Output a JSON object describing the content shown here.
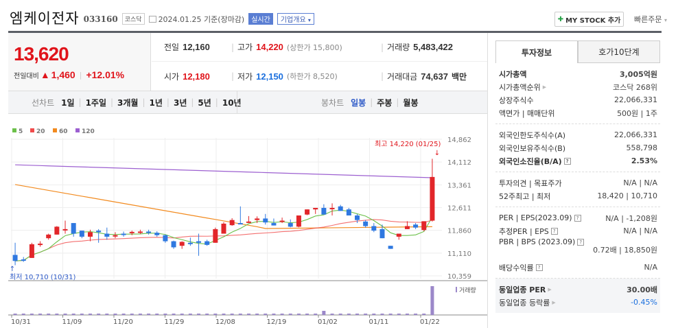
{
  "header": {
    "company_name": "엠케이전자",
    "stock_code": "033160",
    "market": "코스닥",
    "date_text": "2024.01.25 기준(장마감)",
    "realtime_label": "실시간",
    "corp_overview_label": "기업개요",
    "my_stock_label": "MY STOCK 추가",
    "quick_order_label": "빠른주문"
  },
  "price": {
    "current": "13,620",
    "change_label": "전일대비",
    "change_arrow": "▲",
    "change_value": "1,460",
    "change_pct": "+12.01%"
  },
  "stats": {
    "prev_close_label": "전일",
    "prev_close": "12,160",
    "high_label": "고가",
    "high": "14,220",
    "upper_limit": "(상한가 15,800)",
    "volume_label": "거래량",
    "volume": "5,483,422",
    "open_label": "시가",
    "open": "12,180",
    "low_label": "저가",
    "low": "12,150",
    "lower_limit": "(하한가 8,520)",
    "amount_label": "거래대금",
    "amount": "74,637",
    "amount_unit": "백만"
  },
  "periods": {
    "line_label": "선차트",
    "line_items": [
      "1일",
      "1주일",
      "3개월",
      "1년",
      "3년",
      "5년",
      "10년"
    ],
    "candle_label": "봉차트",
    "candle_items": [
      "일봉",
      "주봉",
      "월봉"
    ],
    "candle_selected": "일봉"
  },
  "chart_data": {
    "type": "candlestick",
    "title": "엠케이전자 일봉",
    "legend": [
      {
        "name": "5",
        "color": "#6cc04a"
      },
      {
        "name": "20",
        "color": "#f04b4b"
      },
      {
        "name": "60",
        "color": "#f28a1e"
      },
      {
        "name": "120",
        "color": "#9c5fd0"
      }
    ],
    "y_ticks": [
      "14,862",
      "14,112",
      "13,361",
      "12,611",
      "11,860",
      "11,110",
      "10,359"
    ],
    "ylim": [
      10359,
      14862
    ],
    "x_ticks": [
      "10/31",
      "11/09",
      "11/20",
      "11/29",
      "12/08",
      "12/19",
      "01/02",
      "01/11",
      "01/22"
    ],
    "annotations": {
      "high": "최고 14,220 (01/25)",
      "low": "최저 10,710 (10/31)"
    },
    "volume_label": "거래량",
    "candles": [
      [
        11050,
        11450,
        10710,
        10850
      ],
      [
        10900,
        10980,
        10820,
        10890
      ],
      [
        10950,
        11450,
        10950,
        11400
      ],
      [
        11400,
        11500,
        11320,
        11420
      ],
      [
        11600,
        11750,
        11550,
        11720
      ],
      [
        11720,
        12000,
        11800,
        11980
      ],
      [
        11900,
        12180,
        11750,
        11900
      ],
      [
        12100,
        12000,
        11650,
        11750
      ],
      [
        11850,
        11820,
        11600,
        11650
      ],
      [
        11650,
        11880,
        11500,
        11800
      ],
      [
        11850,
        11900,
        11450,
        11800
      ],
      [
        11750,
        11950,
        11550,
        11650
      ],
      [
        11700,
        11800,
        11600,
        11700
      ],
      [
        11750,
        11820,
        11650,
        11720
      ],
      [
        11800,
        11850,
        11700,
        11810
      ],
      [
        11800,
        11880,
        11740,
        11820
      ],
      [
        11820,
        11880,
        11720,
        11780
      ],
      [
        11780,
        11830,
        11650,
        11700
      ],
      [
        11700,
        11720,
        11450,
        11500
      ],
      [
        11500,
        11520,
        11250,
        11300
      ],
      [
        11350,
        11500,
        11250,
        11480
      ],
      [
        11450,
        11620,
        11350,
        11420
      ],
      [
        11500,
        11750,
        11020,
        11450
      ],
      [
        11500,
        11550,
        11350,
        11380
      ],
      [
        11450,
        11950,
        11450,
        11900
      ],
      [
        11750,
        12130,
        11750,
        12080
      ],
      [
        12030,
        12260,
        12010,
        12200
      ],
      [
        12100,
        12650,
        12060,
        12060
      ],
      [
        12150,
        12330,
        12100,
        12150
      ],
      [
        12200,
        12320,
        12100,
        12250
      ],
      [
        12250,
        12400,
        12050,
        12120
      ],
      [
        12100,
        12250,
        12050,
        12020
      ],
      [
        12150,
        12280,
        12100,
        12180
      ],
      [
        12100,
        12220,
        11960,
        11980
      ],
      [
        11980,
        12350,
        11960,
        12350
      ],
      [
        12380,
        12540,
        12360,
        12550
      ],
      [
        12550,
        12600,
        12400,
        12600
      ],
      [
        12600,
        12720,
        12450,
        12380
      ],
      [
        12600,
        12750,
        12350,
        12600
      ],
      [
        12650,
        12700,
        12500,
        12500
      ],
      [
        12550,
        12600,
        12400,
        12350
      ],
      [
        12350,
        12400,
        12100,
        12200
      ],
      [
        12150,
        12200,
        11950,
        12000
      ],
      [
        12000,
        12100,
        11800,
        11850
      ],
      [
        11900,
        12050,
        11600,
        11600
      ],
      [
        11350,
        11350,
        11250,
        11250
      ],
      [
        11650,
        11750,
        11550,
        11750
      ],
      [
        11900,
        12160,
        11950,
        12000
      ],
      [
        12050,
        12100,
        11900,
        11950
      ],
      [
        11870,
        12160,
        11830,
        12160
      ],
      [
        12180,
        14220,
        12150,
        13620
      ]
    ],
    "volume_spike_index": 50
  },
  "invest": {
    "tabs": [
      "투자정보",
      "호가10단계"
    ],
    "sections": [
      [
        {
          "k": "시가총액",
          "v": "3,005억원",
          "bold": true
        },
        {
          "k": "시가총액순위",
          "v": "코스닥 268위",
          "arrow": true
        },
        {
          "k": "상장주식수",
          "v": "22,066,331"
        },
        {
          "k": "액면가 | 매매단위",
          "v": "500원 | 1주"
        }
      ],
      [
        {
          "k": "외국인한도주식수(A)",
          "v": "22,066,331"
        },
        {
          "k": "외국인보유주식수(B)",
          "v": "558,798"
        },
        {
          "k": "외국인소진율(B/A)",
          "v": "2.53%",
          "bold": true,
          "help": true
        }
      ],
      [
        {
          "k": "투자의견 | 목표주가",
          "v": "N/A | N/A"
        },
        {
          "k": "52주최고 | 최저",
          "v": "18,420 | 10,710"
        }
      ],
      [
        {
          "k": "PER | EPS(2023.09)",
          "v": "N/A | -1,208원",
          "help": true
        },
        {
          "k": "추정PER | EPS",
          "v": "N/A | N/A",
          "help": true
        },
        {
          "k": "PBR | BPS (2023.09)",
          "v": "0.72배 | 18,850원",
          "help": true,
          "tall": true
        },
        {
          "k": "배당수익률",
          "v": "N/A",
          "help": true
        }
      ],
      [
        {
          "k": "동일업종 PER",
          "v": "30.00배",
          "bold": true,
          "arrow": true
        },
        {
          "k": "동일업종 등락률",
          "v": "-0.45%",
          "arrow": true,
          "blue": true
        }
      ]
    ]
  }
}
